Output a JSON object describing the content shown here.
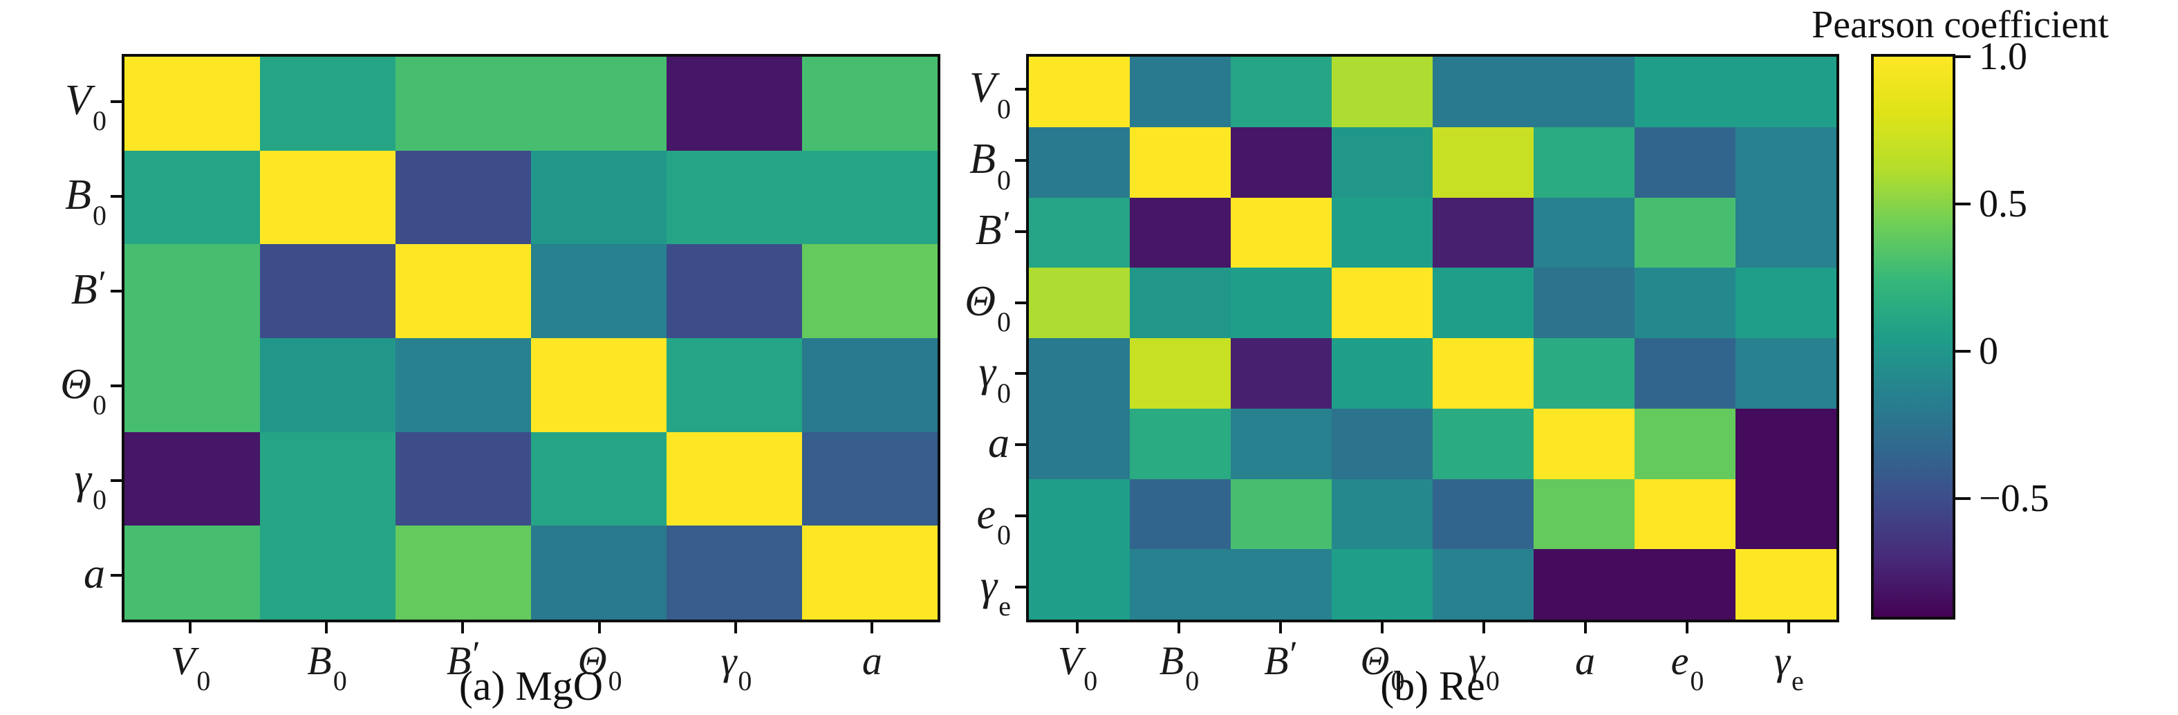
{
  "figure": {
    "background": "#ffffff",
    "colormap": "viridis",
    "text_color": "#111111"
  },
  "colorbar": {
    "title": "Pearson coefficient",
    "vmin": -0.9,
    "vmax": 1.0,
    "tick_labels": [
      "1.0",
      "0.5",
      "0",
      "−0.5"
    ],
    "tick_values": [
      1.0,
      0.5,
      0,
      -0.5
    ]
  },
  "chart_data": [
    {
      "type": "heatmap",
      "caption": "(a) MgO",
      "variables": [
        "V_0",
        "B_0",
        "B'",
        "Θ_0",
        "γ_0",
        "a"
      ],
      "matrix": [
        [
          1.0,
          0.1,
          0.3,
          0.3,
          -0.8,
          0.3
        ],
        [
          0.1,
          1.0,
          -0.5,
          0.0,
          0.1,
          0.1
        ],
        [
          0.3,
          -0.5,
          1.0,
          -0.15,
          -0.5,
          0.4
        ],
        [
          0.3,
          0.0,
          -0.15,
          1.0,
          0.1,
          -0.2
        ],
        [
          -0.8,
          0.1,
          -0.5,
          0.1,
          1.0,
          -0.4
        ],
        [
          0.3,
          0.1,
          0.4,
          -0.2,
          -0.4,
          1.0
        ]
      ],
      "value_range": [
        -0.9,
        1.0
      ],
      "legend": "shared colorbar at right"
    },
    {
      "type": "heatmap",
      "caption": "(b) Re",
      "variables": [
        "V_0",
        "B_0",
        "B'",
        "Θ_0",
        "γ_0",
        "a",
        "e_0",
        "γ_e"
      ],
      "matrix": [
        [
          1.0,
          -0.2,
          0.1,
          0.6,
          -0.2,
          -0.2,
          0.05,
          0.05
        ],
        [
          -0.2,
          1.0,
          -0.8,
          0.0,
          0.7,
          0.15,
          -0.35,
          -0.15
        ],
        [
          0.1,
          -0.8,
          1.0,
          0.05,
          -0.75,
          -0.15,
          0.3,
          -0.15
        ],
        [
          0.6,
          0.0,
          0.05,
          1.0,
          0.05,
          -0.25,
          -0.1,
          0.05
        ],
        [
          -0.2,
          0.7,
          -0.75,
          0.05,
          1.0,
          0.15,
          -0.35,
          -0.15
        ],
        [
          -0.2,
          0.15,
          -0.15,
          -0.25,
          0.15,
          1.0,
          0.4,
          -0.85
        ],
        [
          0.05,
          -0.35,
          0.3,
          -0.1,
          -0.35,
          0.4,
          1.0,
          -0.85
        ],
        [
          0.05,
          -0.15,
          -0.15,
          0.05,
          -0.15,
          -0.85,
          -0.85,
          1.0
        ]
      ],
      "value_range": [
        -0.9,
        1.0
      ],
      "legend": "shared colorbar at right"
    }
  ]
}
